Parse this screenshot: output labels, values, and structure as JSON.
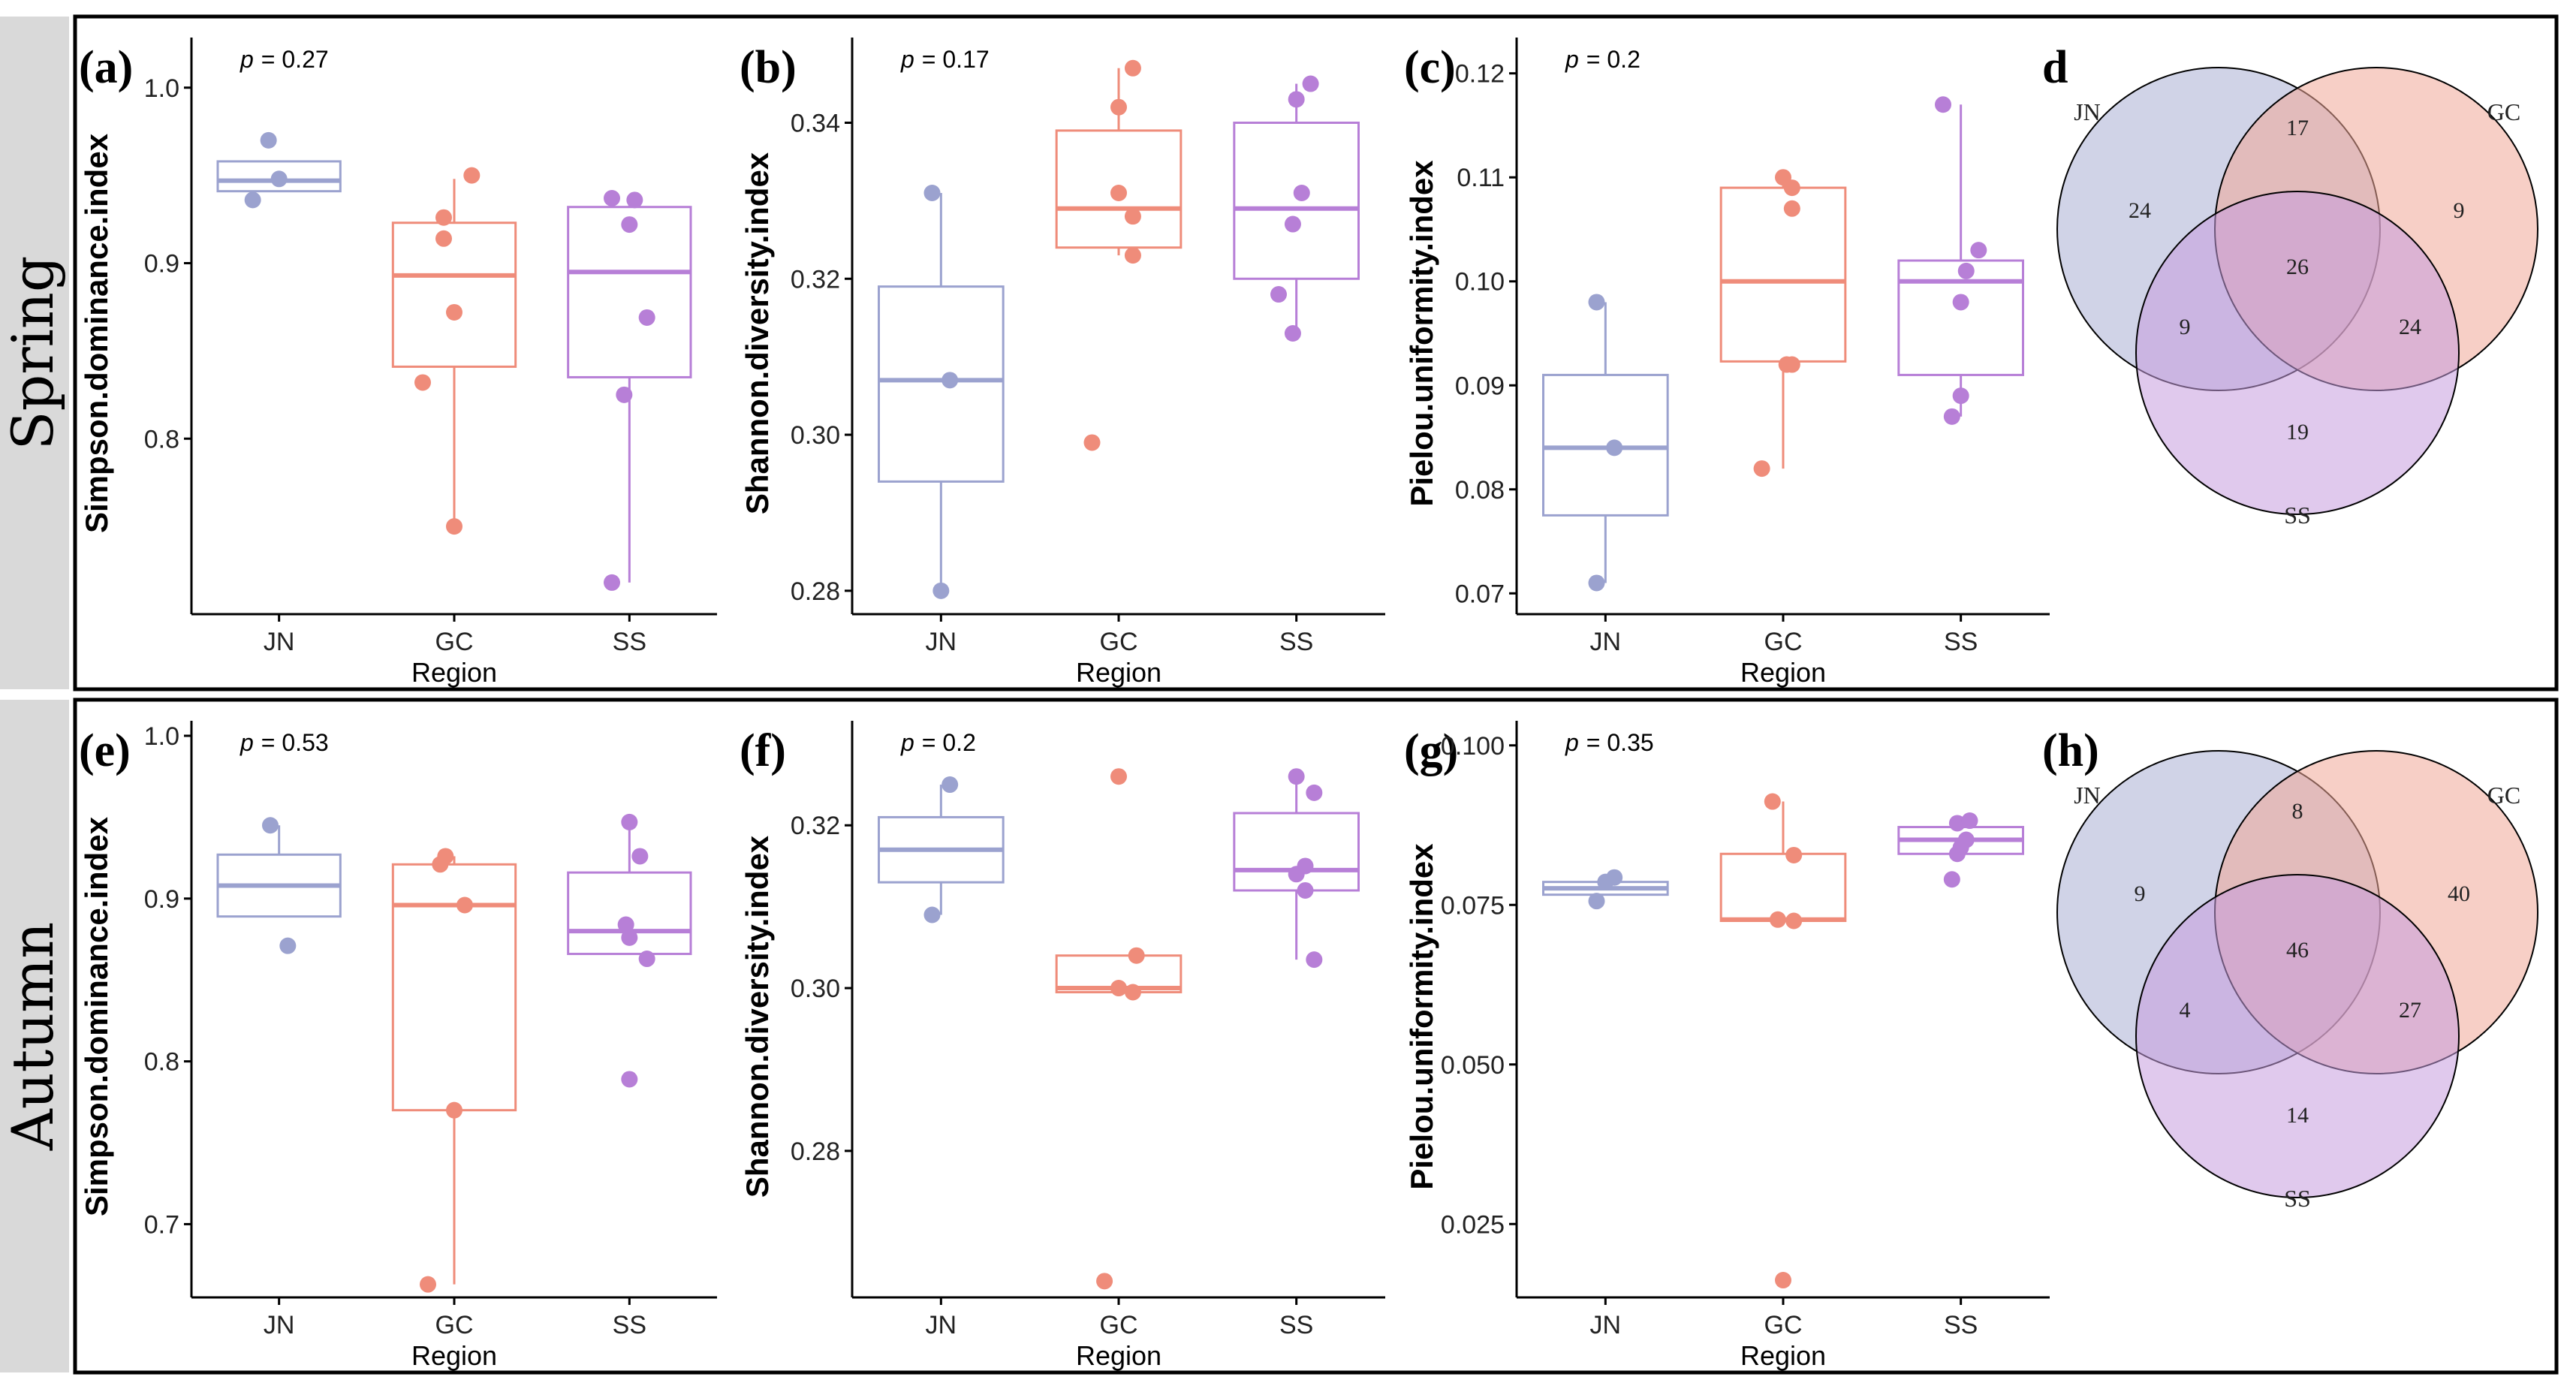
{
  "rows": [
    {
      "label": "Spring",
      "panels": [
        {
          "letter": "(a)",
          "type": "box",
          "ylabel": "Simpson.dominance.index",
          "xlabel": "Region",
          "p_prefix": "p",
          "p_value": "= 0.27",
          "ylim": [
            0.7,
            1.02
          ],
          "yticks": [
            0.8,
            0.9,
            1.0
          ],
          "tick_labels": [
            "0.8",
            "0.9",
            "1.0"
          ],
          "categories": [
            "JN",
            "GC",
            "SS"
          ],
          "boxes": [
            {
              "q1": 0.941,
              "median": 0.947,
              "q3": 0.958,
              "lower": 0.941,
              "upper": 0.958
            },
            {
              "q1": 0.841,
              "median": 0.893,
              "q3": 0.923,
              "lower": 0.75,
              "upper": 0.948
            },
            {
              "q1": 0.835,
              "median": 0.895,
              "q3": 0.932,
              "lower": 0.718,
              "upper": 0.937
            }
          ],
          "points": [
            [
              [
                -0.15,
                0.936
              ],
              [
                0.0,
                0.948
              ],
              [
                -0.06,
                0.97
              ]
            ],
            [
              [
                0.1,
                0.95
              ],
              [
                -0.06,
                0.926
              ],
              [
                -0.06,
                0.914
              ],
              [
                0.0,
                0.872
              ],
              [
                -0.18,
                0.832
              ],
              [
                0.0,
                0.75
              ]
            ],
            [
              [
                -0.1,
                0.937
              ],
              [
                0.03,
                0.936
              ],
              [
                0.0,
                0.922
              ],
              [
                0.1,
                0.869
              ],
              [
                -0.03,
                0.825
              ],
              [
                -0.1,
                0.718
              ]
            ]
          ]
        },
        {
          "letter": "(b)",
          "type": "box",
          "ylabel": "Shannon.diversity.index",
          "xlabel": "Region",
          "p_prefix": "p",
          "p_value": "= 0.17",
          "ylim": [
            0.277,
            0.349
          ],
          "yticks": [
            0.28,
            0.3,
            0.32,
            0.34
          ],
          "tick_labels": [
            "0.28",
            "0.30",
            "0.32",
            "0.34"
          ],
          "categories": [
            "JN",
            "GC",
            "SS"
          ],
          "boxes": [
            {
              "q1": 0.294,
              "median": 0.307,
              "q3": 0.319,
              "lower": 0.28,
              "upper": 0.331
            },
            {
              "q1": 0.324,
              "median": 0.329,
              "q3": 0.339,
              "lower": 0.323,
              "upper": 0.347
            },
            {
              "q1": 0.32,
              "median": 0.329,
              "q3": 0.34,
              "lower": 0.313,
              "upper": 0.345
            }
          ],
          "points": [
            [
              [
                -0.05,
                0.331
              ],
              [
                0.05,
                0.307
              ],
              [
                0.0,
                0.28
              ]
            ],
            [
              [
                0.08,
                0.347
              ],
              [
                0.0,
                0.342
              ],
              [
                0.0,
                0.331
              ],
              [
                0.08,
                0.328
              ],
              [
                0.08,
                0.323
              ],
              [
                -0.15,
                0.299
              ]
            ],
            [
              [
                0.08,
                0.345
              ],
              [
                0.0,
                0.343
              ],
              [
                0.03,
                0.331
              ],
              [
                -0.02,
                0.327
              ],
              [
                -0.1,
                0.318
              ],
              [
                -0.02,
                0.313
              ]
            ]
          ]
        },
        {
          "letter": "(c)",
          "type": "box",
          "ylabel": "Pielou.uniformity.index",
          "xlabel": "Region",
          "p_prefix": "p",
          "p_value": "= 0.2",
          "ylim": [
            0.068,
            0.122
          ],
          "yticks": [
            0.07,
            0.08,
            0.09,
            0.1,
            0.11,
            0.12
          ],
          "tick_labels": [
            "0.07",
            "0.08",
            "0.09",
            "0.10",
            "0.11",
            "0.12"
          ],
          "categories": [
            "JN",
            "GC",
            "SS"
          ],
          "boxes": [
            {
              "q1": 0.0775,
              "median": 0.084,
              "q3": 0.091,
              "lower": 0.071,
              "upper": 0.098
            },
            {
              "q1": 0.0923,
              "median": 0.1,
              "q3": 0.109,
              "lower": 0.082,
              "upper": 0.11
            },
            {
              "q1": 0.091,
              "median": 0.1,
              "q3": 0.102,
              "lower": 0.087,
              "upper": 0.117
            }
          ],
          "points": [
            [
              [
                -0.05,
                0.098
              ],
              [
                0.05,
                0.084
              ],
              [
                -0.05,
                0.071
              ]
            ],
            [
              [
                0.0,
                0.11
              ],
              [
                0.05,
                0.109
              ],
              [
                0.05,
                0.107
              ],
              [
                0.02,
                0.092
              ],
              [
                0.05,
                0.092
              ],
              [
                -0.12,
                0.082
              ]
            ],
            [
              [
                -0.1,
                0.117
              ],
              [
                0.1,
                0.103
              ],
              [
                0.03,
                0.101
              ],
              [
                0.0,
                0.098
              ],
              [
                0.0,
                0.089
              ],
              [
                -0.05,
                0.087
              ]
            ]
          ]
        },
        {
          "letter": "d",
          "type": "venn",
          "sets": [
            "JN",
            "GC",
            "SS"
          ],
          "counts": {
            "jn_only": "24",
            "gc_only": "9",
            "ss_only": "19",
            "jn_gc": "17",
            "jn_ss": "9",
            "gc_ss": "24",
            "all": "26"
          }
        }
      ]
    },
    {
      "label": "Autumn",
      "panels": [
        {
          "letter": "(e)",
          "type": "box",
          "ylabel": "Simpson.dominance.index",
          "xlabel": "Region",
          "p_prefix": "p",
          "p_value": "= 0.53",
          "ylim": [
            0.655,
            1.0
          ],
          "yticks": [
            0.7,
            0.8,
            0.9,
            1.0
          ],
          "tick_labels": [
            "0.7",
            "0.8",
            "0.9",
            "1.0"
          ],
          "categories": [
            "JN",
            "GC",
            "SS"
          ],
          "boxes": [
            {
              "q1": 0.889,
              "median": 0.908,
              "q3": 0.927,
              "lower": 0.889,
              "upper": 0.945
            },
            {
              "q1": 0.77,
              "median": 0.896,
              "q3": 0.921,
              "lower": 0.663,
              "upper": 0.926
            },
            {
              "q1": 0.866,
              "median": 0.88,
              "q3": 0.916,
              "lower": 0.866,
              "upper": 0.946
            }
          ],
          "points": [
            [
              [
                -0.05,
                0.945
              ],
              [
                0.05,
                0.871
              ]
            ],
            [
              [
                -0.05,
                0.926
              ],
              [
                -0.08,
                0.921
              ],
              [
                0.06,
                0.896
              ],
              [
                0.0,
                0.77
              ],
              [
                -0.15,
                0.663
              ]
            ],
            [
              [
                0.0,
                0.947
              ],
              [
                0.06,
                0.926
              ],
              [
                -0.02,
                0.884
              ],
              [
                0.0,
                0.876
              ],
              [
                0.1,
                0.863
              ],
              [
                0.0,
                0.789
              ]
            ]
          ]
        },
        {
          "letter": "(f)",
          "type": "box",
          "ylabel": "Shannon.diversity.index",
          "xlabel": "Region",
          "p_prefix": "p",
          "p_value": "= 0.2",
          "ylim": [
            0.262,
            0.331
          ],
          "yticks": [
            0.28,
            0.3,
            0.32
          ],
          "tick_labels": [
            "0.28",
            "0.30",
            "0.32"
          ],
          "categories": [
            "JN",
            "GC",
            "SS"
          ],
          "boxes": [
            {
              "q1": 0.313,
              "median": 0.317,
              "q3": 0.321,
              "lower": 0.309,
              "upper": 0.325
            },
            {
              "q1": 0.2995,
              "median": 0.3,
              "q3": 0.304,
              "lower": 0.2995,
              "upper": 0.304
            },
            {
              "q1": 0.312,
              "median": 0.3145,
              "q3": 0.3215,
              "lower": 0.3035,
              "upper": 0.326
            }
          ],
          "points": [
            [
              [
                0.05,
                0.325
              ],
              [
                -0.05,
                0.309
              ]
            ],
            [
              [
                0.0,
                0.326
              ],
              [
                0.1,
                0.304
              ],
              [
                0.0,
                0.3
              ],
              [
                0.08,
                0.2995
              ],
              [
                -0.08,
                0.264
              ]
            ],
            [
              [
                0.0,
                0.326
              ],
              [
                0.1,
                0.324
              ],
              [
                0.05,
                0.315
              ],
              [
                0.0,
                0.314
              ],
              [
                0.05,
                0.312
              ],
              [
                0.1,
                0.3035
              ]
            ]
          ]
        },
        {
          "letter": "(g)",
          "type": "box",
          "ylabel": "Pielou.uniformity.index",
          "xlabel": "Region",
          "p_prefix": "p",
          "p_value": "= 0.35",
          "ylim": [
            0.0135,
            0.1015
          ],
          "yticks": [
            0.025,
            0.05,
            0.075,
            0.1
          ],
          "tick_labels": [
            "0.025",
            "0.050",
            "0.075",
            "0.100"
          ],
          "categories": [
            "JN",
            "GC",
            "SS"
          ],
          "boxes": [
            {
              "q1": 0.0766,
              "median": 0.0776,
              "q3": 0.0786,
              "lower": 0.0766,
              "upper": 0.0786
            },
            {
              "q1": 0.0725,
              "median": 0.0727,
              "q3": 0.083,
              "lower": 0.0725,
              "upper": 0.0912
            },
            {
              "q1": 0.083,
              "median": 0.0852,
              "q3": 0.0872,
              "lower": 0.083,
              "upper": 0.0882
            }
          ],
          "points": [
            [
              [
                0.05,
                0.0793
              ],
              [
                0.0,
                0.0786
              ],
              [
                -0.05,
                0.0756
              ]
            ],
            [
              [
                -0.06,
                0.0912
              ],
              [
                0.06,
                0.0828
              ],
              [
                -0.03,
                0.0727
              ],
              [
                0.06,
                0.0725
              ],
              [
                0.0,
                0.0162
              ]
            ],
            [
              [
                -0.02,
                0.0878
              ],
              [
                0.05,
                0.0882
              ],
              [
                0.03,
                0.0852
              ],
              [
                0.0,
                0.084
              ],
              [
                -0.02,
                0.083
              ],
              [
                -0.05,
                0.079
              ]
            ]
          ]
        },
        {
          "letter": "(h)",
          "type": "venn",
          "sets": [
            "JN",
            "GC",
            "SS"
          ],
          "counts": {
            "jn_only": "9",
            "gc_only": "40",
            "ss_only": "14",
            "jn_gc": "8",
            "jn_ss": "4",
            "gc_ss": "27",
            "all": "46"
          }
        }
      ]
    }
  ],
  "colors": {
    "JN": "#9ba2cf",
    "GC": "#ef8c7a",
    "SS": "#b77fd7"
  },
  "venn_fill": {
    "JN": "#a9afd4",
    "GC": "#f0a897",
    "SS": "#c79ddf"
  },
  "chart_data": [
    {
      "type": "box",
      "title": "",
      "xlabel": "Region",
      "ylabel": "Simpson.dominance.index",
      "categories": [
        "JN",
        "GC",
        "SS"
      ],
      "annotation": "p = 0.27"
    },
    {
      "type": "box",
      "title": "",
      "xlabel": "Region",
      "ylabel": "Shannon.diversity.index",
      "categories": [
        "JN",
        "GC",
        "SS"
      ],
      "annotation": "p = 0.17"
    },
    {
      "type": "box",
      "title": "",
      "xlabel": "Region",
      "ylabel": "Pielou.uniformity.index",
      "categories": [
        "JN",
        "GC",
        "SS"
      ],
      "annotation": "p = 0.2"
    },
    {
      "type": "venn",
      "sets": [
        "JN",
        "GC",
        "SS"
      ],
      "counts": {
        "jn_only": 24,
        "gc_only": 9,
        "ss_only": 19,
        "jn_gc": 17,
        "jn_ss": 9,
        "gc_ss": 24,
        "all": 26
      }
    },
    {
      "type": "box",
      "title": "",
      "xlabel": "Region",
      "ylabel": "Simpson.dominance.index",
      "categories": [
        "JN",
        "GC",
        "SS"
      ],
      "annotation": "p = 0.53"
    },
    {
      "type": "box",
      "title": "",
      "xlabel": "Region",
      "ylabel": "Shannon.diversity.index",
      "categories": [
        "JN",
        "GC",
        "SS"
      ],
      "annotation": "p = 0.2"
    },
    {
      "type": "box",
      "title": "",
      "xlabel": "Region",
      "ylabel": "Pielou.uniformity.index",
      "categories": [
        "JN",
        "GC",
        "SS"
      ],
      "annotation": "p = 0.35"
    },
    {
      "type": "venn",
      "sets": [
        "JN",
        "GC",
        "SS"
      ],
      "counts": {
        "jn_only": 9,
        "gc_only": 40,
        "ss_only": 14,
        "jn_gc": 8,
        "jn_ss": 4,
        "gc_ss": 27,
        "all": 46
      }
    }
  ]
}
